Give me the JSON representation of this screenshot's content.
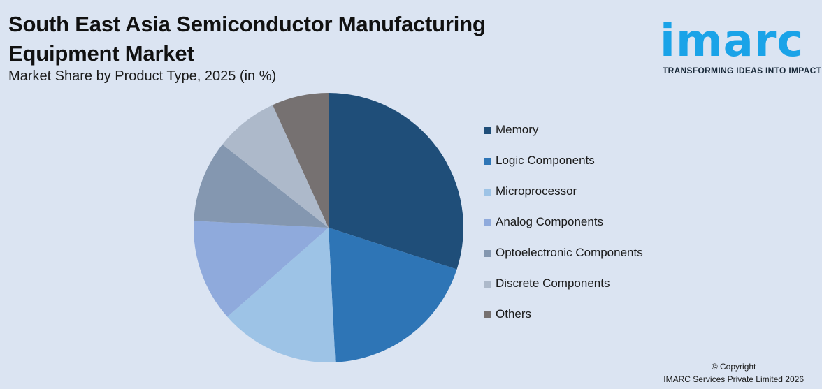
{
  "header": {
    "title": "South East Asia Semiconductor Manufacturing Equipment Market",
    "subtitle": "Market Share by Product Type, 2025 (in %)"
  },
  "logo": {
    "word": "imarc",
    "tagline": "TRANSFORMING IDEAS INTO IMPACT",
    "color": "#1aa3e8"
  },
  "chart_data": {
    "type": "pie",
    "title": "South East Asia Semiconductor Manufacturing Equipment Market",
    "subtitle": "Market Share by Product Type, 2025 (in %)",
    "categories": [
      "Memory",
      "Logic Components",
      "Microprocessor",
      "Analog Components",
      "Optoelectronic Components",
      "Discrete Components",
      "Others"
    ],
    "values": [
      30.0,
      19.2,
      14.3,
      12.3,
      9.8,
      7.6,
      6.8
    ],
    "colors": [
      "#1f4e79",
      "#2e75b6",
      "#9dc3e6",
      "#8faadc",
      "#8497b0",
      "#adb9ca",
      "#767171"
    ],
    "legend_position": "right"
  },
  "footer": {
    "copyright_line1": "© Copyright",
    "copyright_line2": "IMARC Services Private Limited 2026"
  }
}
